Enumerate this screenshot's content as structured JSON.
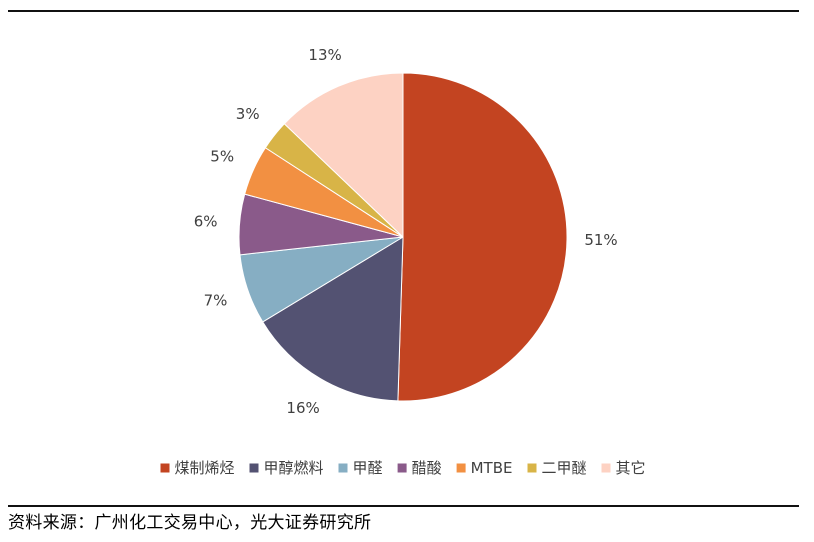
{
  "chart_data": {
    "type": "pie",
    "categories": [
      "煤制烯烃",
      "甲醇燃料",
      "甲醛",
      "醋酸",
      "MTBE",
      "二甲醚",
      "其它"
    ],
    "values": [
      51,
      16,
      7,
      6,
      5,
      3,
      13
    ],
    "labels": [
      "51%",
      "16%",
      "7%",
      "6%",
      "5%",
      "3%",
      "13%"
    ],
    "colors": [
      "#C34421",
      "#535272",
      "#86AEC3",
      "#8A5A8A",
      "#F29042",
      "#D8B447",
      "#FDD2C3"
    ],
    "start_angle_deg": 0,
    "direction": "clockwise",
    "legend_position": "bottom"
  },
  "source_text": "资料来源：广州化工交易中心，光大证券研究所"
}
